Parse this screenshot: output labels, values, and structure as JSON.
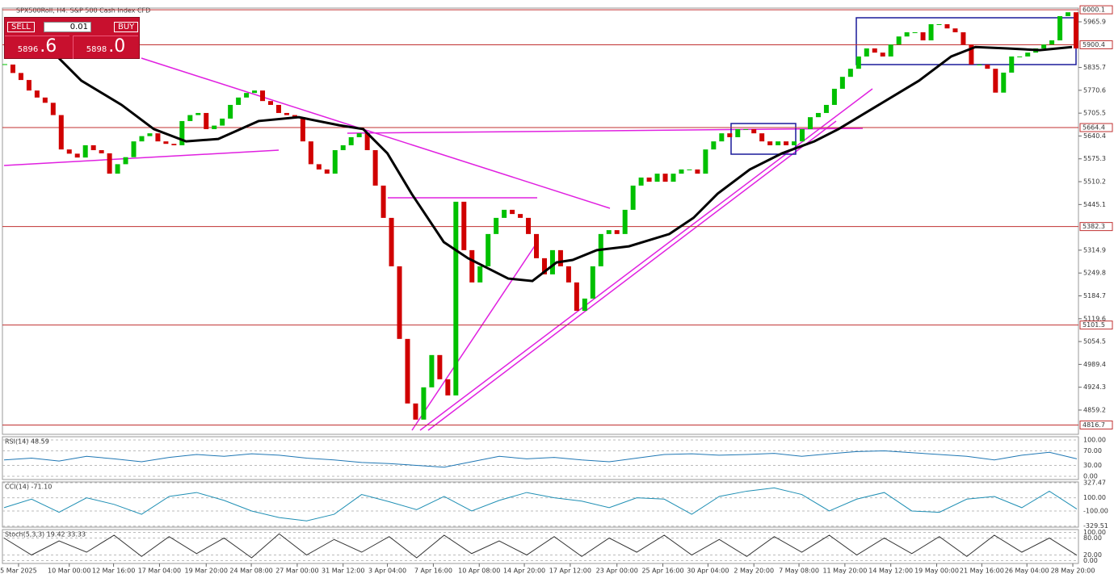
{
  "header": {
    "title": "SPX500Roll, H4:  S&P 500 Cash Index CFD"
  },
  "trade_panel": {
    "sell": "SELL",
    "lot": "0.01",
    "buy": "BUY",
    "bid_main": "5896",
    "bid_frac": ".6",
    "ask_main": "5898",
    "ask_frac": ".0"
  },
  "chart_data": [
    {
      "type": "candlestick",
      "up_color": "#00c000",
      "down_color": "#d00000",
      "close": [
        5844,
        5820,
        5800,
        5770,
        5750,
        5735,
        5700,
        5602,
        5590,
        5579,
        5614,
        5600,
        5591,
        5533,
        5560,
        5580,
        5625,
        5640,
        5648,
        5625,
        5618,
        5614,
        5683,
        5700,
        5706,
        5660,
        5670,
        5690,
        5729,
        5750,
        5763,
        5770,
        5740,
        5729,
        5706,
        5700,
        5694,
        5625,
        5560,
        5545,
        5533,
        5600,
        5614,
        5637,
        5648,
        5600,
        5499,
        5407,
        5269,
        5062,
        4878,
        4832,
        4924,
        5016,
        4947,
        4901,
        5453,
        5315,
        5223,
        5269,
        5361,
        5407,
        5430,
        5418,
        5407,
        5361,
        5292,
        5246,
        5315,
        5269,
        5223,
        5142,
        5177,
        5269,
        5361,
        5372,
        5361,
        5430,
        5499,
        5522,
        5510,
        5533,
        5510,
        5533,
        5545,
        5545,
        5533,
        5602,
        5625,
        5648,
        5637,
        5660,
        5660,
        5648,
        5625,
        5614,
        5625,
        5614,
        5625,
        5660,
        5694,
        5706,
        5729,
        5775,
        5809,
        5832,
        5867,
        5890,
        5878,
        5867,
        5901,
        5924,
        5936,
        5936,
        5913,
        5959,
        5959,
        5947,
        5936,
        5901,
        5844,
        5844,
        5832,
        5764,
        5821,
        5867,
        5867,
        5878,
        5890,
        5901,
        5913,
        5982,
        5993,
        5890
      ],
      "overlays": [
        {
          "color": "#000000",
          "x": [
            5.5,
            9.5,
            14.5,
            18.5,
            22.5,
            26.5,
            31.5,
            36.5,
            41.5,
            44.5,
            47.5,
            50.5,
            54.5,
            57.5,
            62.5,
            65.5,
            68.5,
            70.5,
            73.5,
            77.5,
            82.5,
            85.5,
            88.5,
            92.5,
            96.5,
            100.5,
            103.5,
            108.5,
            113.5,
            117.5,
            120.5,
            124.5,
            128.5,
            132.5
          ],
          "values": [
            5890,
            5798,
            5729,
            5660,
            5625,
            5632,
            5683,
            5694,
            5671,
            5660,
            5591,
            5476,
            5338,
            5292,
            5234,
            5227,
            5280,
            5287,
            5315,
            5326,
            5361,
            5407,
            5476,
            5545,
            5591,
            5625,
            5660,
            5729,
            5798,
            5867,
            5894,
            5890,
            5885,
            5894
          ]
        }
      ],
      "xlim": [
        -0.3,
        133.3
      ],
      "xticks": [
        {
          "value": 1.7,
          "label": "5 Mar 2025"
        },
        {
          "value": 8,
          "label": "10 Mar 00:00"
        },
        {
          "value": 13.5,
          "label": "12 Mar 16:00"
        },
        {
          "value": 19.2,
          "label": "17 Mar 04:00"
        },
        {
          "value": 25,
          "label": "19 Mar 20:00"
        },
        {
          "value": 30.6,
          "label": "24 Mar 08:00"
        },
        {
          "value": 36.3,
          "label": "27 Mar 00:00"
        },
        {
          "value": 42,
          "label": "31 Mar 12:00"
        },
        {
          "value": 47.5,
          "label": "3 Apr 04:00"
        },
        {
          "value": 53.2,
          "label": "7 Apr 16:00"
        },
        {
          "value": 58.9,
          "label": "10 Apr 08:00"
        },
        {
          "value": 64.5,
          "label": "14 Apr 20:00"
        },
        {
          "value": 70.2,
          "label": "17 Apr 12:00"
        },
        {
          "value": 76,
          "label": "23 Apr 00:00"
        },
        {
          "value": 81.7,
          "label": "25 Apr 16:00"
        },
        {
          "value": 87.3,
          "label": "30 Apr 04:00"
        },
        {
          "value": 93,
          "label": "2 May 20:00"
        },
        {
          "value": 98.6,
          "label": "7 May 08:00"
        },
        {
          "value": 104.3,
          "label": "11 May 20:00"
        },
        {
          "value": 110,
          "label": "14 May 12:00"
        },
        {
          "value": 115.7,
          "label": "19 May 00:00"
        },
        {
          "value": 121.3,
          "label": "21 May 16:00"
        },
        {
          "value": 126.9,
          "label": "26 May 04:00"
        },
        {
          "value": 132.6,
          "label": "28 May 20:00"
        }
      ],
      "ylim": [
        4797,
        6005
      ],
      "yticks": [
        5965.9,
        5835.7,
        5770.6,
        5705.5,
        5640.4,
        5575.3,
        5510.2,
        5445.1,
        5314.9,
        5249.8,
        5184.7,
        5119.6,
        5054.5,
        4989.4,
        4924.3,
        4859.2
      ],
      "levels": [
        6000.1,
        5900.4,
        5664.4,
        5382.3,
        5101.5,
        4816.7
      ],
      "level_color": "#c03030"
    },
    {
      "type": "line",
      "title": "RSI(14) 48.59",
      "color": "#1f77b4",
      "values": [
        45,
        50,
        42,
        55,
        48,
        40,
        52,
        60,
        55,
        62,
        58,
        50,
        45,
        38,
        35,
        30,
        25,
        40,
        55,
        48,
        52,
        45,
        40,
        50,
        60,
        62,
        58,
        60,
        63,
        55,
        62,
        68,
        70,
        65,
        60,
        55,
        45,
        58,
        66,
        48
      ],
      "ylim": [
        -9,
        109
      ],
      "yticks": [
        {
          "value": 100,
          "label": "100.00"
        },
        {
          "value": 70,
          "label": "70.00"
        },
        {
          "value": 30,
          "label": "30.00"
        },
        {
          "value": 0,
          "label": "0.00"
        }
      ]
    },
    {
      "type": "line",
      "title": "CCI(14) -71.10",
      "color": "#1f8fb4",
      "values": [
        -50,
        80,
        -120,
        100,
        0,
        -150,
        120,
        180,
        60,
        -100,
        -200,
        -250,
        -150,
        150,
        40,
        -80,
        120,
        -100,
        60,
        180,
        100,
        50,
        -50,
        100,
        80,
        -150,
        120,
        200,
        250,
        150,
        -100,
        80,
        180,
        -100,
        -120,
        80,
        120,
        -50,
        200,
        -71
      ],
      "ylim": [
        -345,
        340
      ],
      "yticks": [
        327.47,
        {
          "value": 100,
          "label": "100.00"
        },
        {
          "value": -100,
          "label": "-100.00"
        },
        -329.51
      ]
    },
    {
      "type": "line",
      "title": "Stoch(5,3,3) 19.42 33.33",
      "color": "#333333",
      "values": [
        80,
        20,
        70,
        30,
        90,
        15,
        85,
        25,
        80,
        10,
        95,
        20,
        75,
        30,
        85,
        10,
        90,
        25,
        70,
        20,
        85,
        15,
        80,
        30,
        90,
        20,
        75,
        15,
        85,
        30,
        90,
        20,
        80,
        25,
        85,
        15,
        90,
        30,
        80,
        19
      ],
      "ylim": [
        -10,
        110
      ],
      "yticks": [
        {
          "value": 100,
          "label": "100.00"
        },
        {
          "value": 80,
          "label": "80.00"
        },
        {
          "value": 20,
          "label": "20.00"
        },
        {
          "value": 0,
          "label": "0.00"
        }
      ]
    }
  ]
}
